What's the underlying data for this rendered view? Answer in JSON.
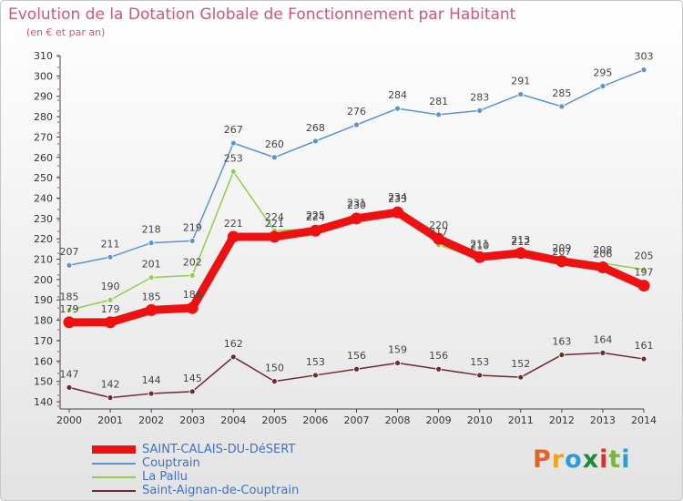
{
  "title": "Evolution de la Dotation Globale de Fonctionnement par Habitant",
  "subtitle": "(en € et par an)",
  "logo": {
    "text": "Proxiti",
    "colors": [
      "#e0632a",
      "#f3a21c",
      "#2e9bd5",
      "#1f8a3e",
      "#d5322c",
      "#7ab82f",
      "#2e9bd5"
    ]
  },
  "chart_data": {
    "type": "line",
    "x": [
      "2000",
      "2001",
      "2002",
      "2003",
      "2004",
      "2005",
      "2006",
      "2007",
      "2008",
      "2009",
      "2010",
      "2011",
      "2012",
      "2013",
      "2014"
    ],
    "ylim": [
      140,
      310
    ],
    "yticks": [
      140,
      150,
      160,
      170,
      180,
      190,
      200,
      210,
      220,
      230,
      240,
      250,
      260,
      270,
      280,
      290,
      300,
      310
    ],
    "grid": "none",
    "legend_position": "bottom-left",
    "series": [
      {
        "name": "SAINT-CALAIS-DU-DéSERT",
        "color": "#ee1111",
        "values": [
          179,
          179,
          185,
          186,
          221,
          221,
          224,
          230,
          233,
          220,
          211,
          213,
          209,
          206,
          197
        ]
      },
      {
        "name": "Couptrain",
        "color": "#5b95cf",
        "values": [
          207,
          211,
          218,
          219,
          267,
          260,
          268,
          276,
          284,
          281,
          283,
          291,
          285,
          295,
          303
        ]
      },
      {
        "name": "La Pallu",
        "color": "#8fd04a",
        "values": [
          185,
          190,
          201,
          202,
          253,
          224,
          225,
          231,
          234,
          217,
          210,
          212,
          207,
          208,
          205
        ]
      },
      {
        "name": "Saint-Aignan-de-Couptrain",
        "color": "#6e2a2e",
        "values": [
          147,
          142,
          144,
          145,
          162,
          150,
          153,
          156,
          159,
          156,
          153,
          152,
          163,
          164,
          161
        ]
      }
    ]
  }
}
